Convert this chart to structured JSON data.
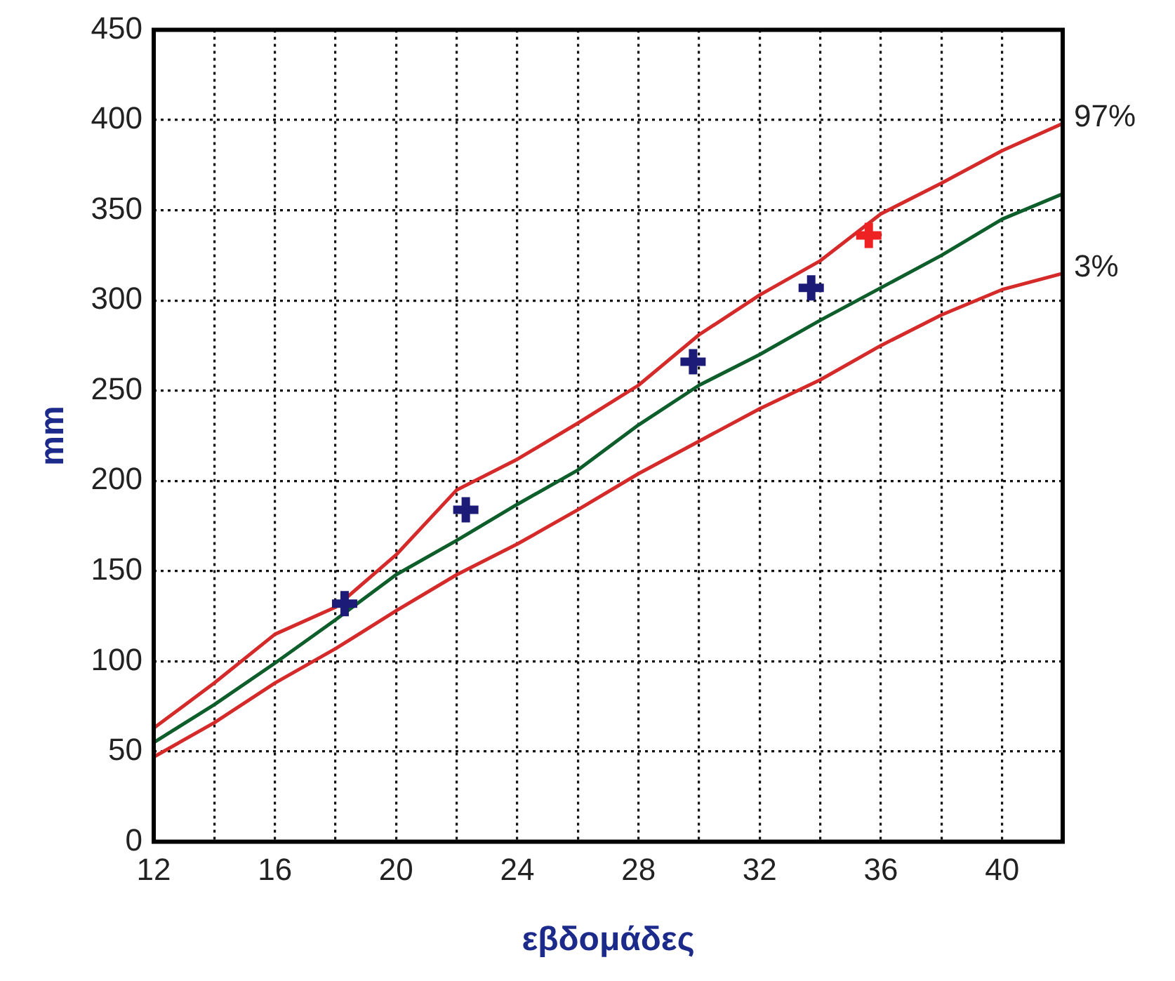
{
  "chart_data": {
    "type": "line",
    "xlabel": "εβδομάδες",
    "ylabel": "mm",
    "xlim": [
      12,
      42
    ],
    "ylim": [
      0,
      450
    ],
    "xticks": [
      12,
      {
        "value": 14,
        "label": null
      },
      16,
      {
        "value": 18,
        "label": null
      },
      20,
      {
        "value": 22,
        "label": null
      },
      24,
      {
        "value": 26,
        "label": null
      },
      28,
      {
        "value": 30,
        "label": null
      },
      32,
      {
        "value": 34,
        "label": null
      },
      36,
      {
        "value": 38,
        "label": null
      },
      40
    ],
    "yticks": [
      0,
      50,
      100,
      150,
      200,
      250,
      300,
      350,
      400,
      450
    ],
    "grid": true,
    "legend": false,
    "line_style": "solid",
    "series": [
      {
        "name": "97%",
        "color": "#d42a2a",
        "type": "line",
        "marker": "none",
        "x": [
          12,
          14,
          16,
          18,
          20,
          22,
          24,
          26,
          28,
          30,
          32,
          34,
          36,
          38,
          40,
          42
        ],
        "values": [
          63,
          88,
          115,
          130,
          159,
          195,
          212,
          232,
          253,
          281,
          303,
          322,
          348,
          365,
          383,
          398
        ]
      },
      {
        "color": "#0d5e2a",
        "type": "line",
        "marker": "none",
        "x": [
          12,
          14,
          16,
          18,
          20,
          22,
          24,
          26,
          28,
          30,
          32,
          34,
          36,
          38,
          40,
          42
        ],
        "values": [
          55,
          76,
          99,
          123,
          148,
          167,
          187,
          206,
          231,
          253,
          270,
          289,
          307,
          325,
          345,
          359
        ]
      },
      {
        "name": "3%",
        "color": "#d42a2a",
        "type": "line",
        "marker": "none",
        "x": [
          12,
          14,
          16,
          18,
          20,
          22,
          24,
          26,
          28,
          30,
          32,
          34,
          36,
          38,
          40,
          42
        ],
        "values": [
          47,
          66,
          88,
          107,
          128,
          148,
          165,
          184,
          204,
          222,
          240,
          256,
          275,
          292,
          306,
          315
        ]
      },
      {
        "color": "#1c1c78",
        "type": "scatter",
        "marker": "cross",
        "x": [
          18.3,
          22.3,
          29.8,
          33.7
        ],
        "values": [
          132,
          184,
          266,
          307
        ]
      },
      {
        "color": "#ee2222",
        "type": "scatter",
        "marker": "cross",
        "x": [
          35.6
        ],
        "values": [
          336
        ]
      }
    ]
  }
}
